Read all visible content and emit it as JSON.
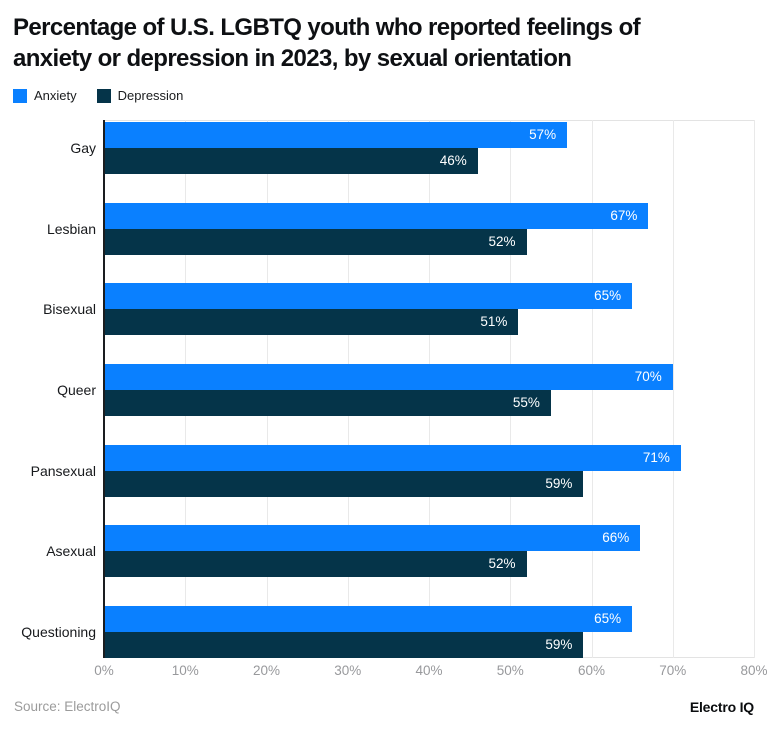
{
  "header": {
    "title": "Percentage of U.S. LGBTQ youth who reported feelings of anxiety or depression in 2023, by sexual orientation"
  },
  "footer": {
    "source": "Source: ElectroIQ",
    "brand": "Electro IQ"
  },
  "colors": {
    "anxiety": "#0a80ff",
    "depression": "#053449",
    "gridline": "#e9e9e9",
    "axis_line": "#1a1d20",
    "tick_text": "#98999c",
    "value_text": "#ffffff"
  },
  "chart_data": {
    "type": "bar",
    "orientation": "horizontal",
    "title": "Percentage of U.S. LGBTQ youth who reported feelings of anxiety or depression in 2023, by sexual orientation",
    "categories": [
      "Gay",
      "Lesbian",
      "Bisexual",
      "Queer",
      "Pansexual",
      "Asexual",
      "Questioning"
    ],
    "series": [
      {
        "name": "Anxiety",
        "color": "#0a80ff",
        "values": [
          57,
          67,
          65,
          70,
          71,
          66,
          65
        ]
      },
      {
        "name": "Depression",
        "color": "#053449",
        "values": [
          46,
          52,
          51,
          55,
          59,
          52,
          59
        ]
      }
    ],
    "value_suffix": "%",
    "xlabel": "",
    "ylabel": "",
    "xlim": [
      0,
      80
    ],
    "xticks": [
      0,
      10,
      20,
      30,
      40,
      50,
      60,
      70,
      80
    ],
    "grid": "vertical",
    "legend_position": "top-left"
  }
}
